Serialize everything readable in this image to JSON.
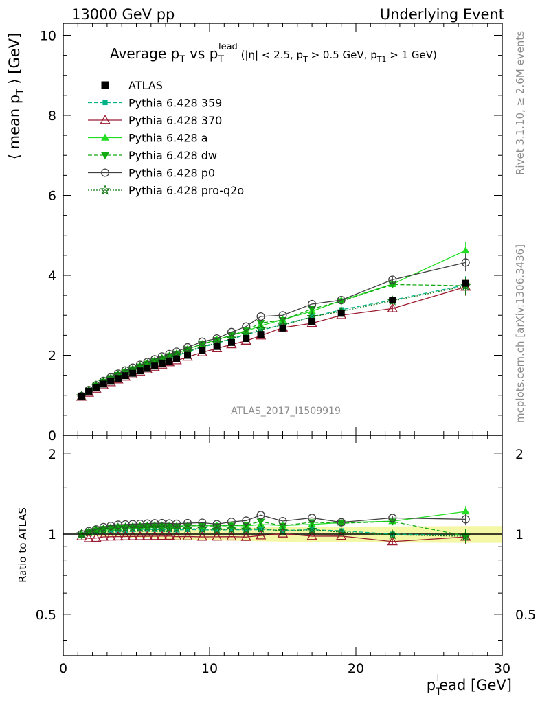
{
  "header": {
    "left": "13000 GeV pp",
    "right": "Underlying Event"
  },
  "side": {
    "rivet": "Rivet 3.1.10, ≥ 2.6M events",
    "mcplots": "mcplots.cern.ch [arXiv:1306.3436]"
  },
  "chart_data": {
    "type": "line",
    "title": {
      "main": "Average p",
      "main_sub": "T",
      "vs": " vs p",
      "vs_sub": "T",
      "vs_sup": "lead",
      "cuts_1": " (|η| < 2.5, p",
      "cuts_1_sub": "T",
      "cuts_2": " > 0.5 GeV, p",
      "cuts_2_sub": "T1",
      "cuts_3": " > 1 GeV)"
    },
    "watermark": "ATLAS_2017_I1509919",
    "xlabel": {
      "main": "p",
      "sub": "T",
      "sup": "l",
      "rest": "ead [GeV]"
    },
    "ylabel": {
      "pre": "⟨ mean p",
      "sub": "T",
      "post": " ⟩ [GeV]"
    },
    "ratio_ylabel": "Ratio to ATLAS",
    "xlim": [
      0,
      30
    ],
    "ylim": [
      0,
      10.3
    ],
    "ratio_ylim": [
      0.35,
      2.35
    ],
    "ratio_log": true,
    "xticks": [
      0,
      10,
      20,
      30
    ],
    "xtick_labels": [
      "0",
      "10",
      "20",
      "30"
    ],
    "yticks": [
      0,
      2,
      4,
      6,
      8,
      10
    ],
    "ytick_labels": [
      "0",
      "2",
      "4",
      "6",
      "8",
      "10"
    ],
    "ratio_yticks": [
      0.5,
      1,
      2
    ],
    "ratio_ytick_labels": [
      "0.5",
      "1",
      "2"
    ],
    "legend_position": "top-left",
    "x": [
      1.25,
      1.75,
      2.25,
      2.75,
      3.25,
      3.75,
      4.25,
      4.75,
      5.25,
      5.75,
      6.25,
      6.75,
      7.25,
      7.75,
      8.5,
      9.5,
      10.5,
      11.5,
      12.5,
      13.5,
      15,
      17,
      19,
      22.5,
      27.5
    ],
    "data": {
      "name": "ATLAS",
      "values": [
        0.98,
        1.1,
        1.2,
        1.28,
        1.35,
        1.42,
        1.49,
        1.55,
        1.61,
        1.67,
        1.73,
        1.79,
        1.85,
        1.91,
        2.0,
        2.12,
        2.22,
        2.32,
        2.42,
        2.52,
        2.68,
        2.85,
        3.05,
        3.38,
        3.8
      ]
    },
    "series": [
      {
        "name": "Pythia 6.428 359",
        "color": "#00b386",
        "dash": "6,3",
        "marker": "square-small",
        "values": [
          0.97,
          1.11,
          1.22,
          1.31,
          1.39,
          1.47,
          1.54,
          1.61,
          1.68,
          1.74,
          1.8,
          1.86,
          1.92,
          1.98,
          2.08,
          2.2,
          2.3,
          2.41,
          2.51,
          2.62,
          2.77,
          2.96,
          3.14,
          3.38,
          3.76
        ]
      },
      {
        "name": "Pythia 6.428 370",
        "color": "#9b1b30",
        "dash": "",
        "marker": "triangle-open",
        "values": [
          0.96,
          1.06,
          1.16,
          1.25,
          1.32,
          1.39,
          1.46,
          1.52,
          1.58,
          1.64,
          1.7,
          1.76,
          1.82,
          1.87,
          1.96,
          2.07,
          2.17,
          2.27,
          2.36,
          2.49,
          2.69,
          2.8,
          3.0,
          3.17,
          3.71
        ]
      },
      {
        "name": "Pythia 6.428 a",
        "color": "#22dd22",
        "dash": "",
        "marker": "triangle-up",
        "values": [
          0.97,
          1.12,
          1.24,
          1.34,
          1.43,
          1.51,
          1.59,
          1.66,
          1.73,
          1.8,
          1.87,
          1.93,
          1.99,
          2.05,
          2.15,
          2.28,
          2.39,
          2.5,
          2.6,
          2.74,
          2.89,
          3.1,
          3.37,
          3.78,
          4.62
        ]
      },
      {
        "name": "Pythia 6.428 dw",
        "color": "#11aa11",
        "dash": "6,3",
        "marker": "triangle-down",
        "values": [
          0.97,
          1.12,
          1.24,
          1.34,
          1.43,
          1.51,
          1.58,
          1.65,
          1.72,
          1.79,
          1.86,
          1.92,
          1.98,
          2.04,
          2.15,
          2.28,
          2.38,
          2.5,
          2.62,
          2.81,
          2.88,
          3.16,
          3.35,
          3.77,
          3.74
        ]
      },
      {
        "name": "Pythia 6.428 p0",
        "color": "#404040",
        "dash": "",
        "marker": "circle-open",
        "values": [
          0.98,
          1.13,
          1.25,
          1.36,
          1.45,
          1.54,
          1.62,
          1.69,
          1.76,
          1.83,
          1.9,
          1.97,
          2.03,
          2.09,
          2.2,
          2.34,
          2.42,
          2.58,
          2.72,
          2.97,
          3.0,
          3.28,
          3.38,
          3.89,
          4.32
        ]
      },
      {
        "name": "Pythia 6.428 pro-q2o",
        "color": "#117711",
        "dash": "2,2",
        "marker": "star",
        "values": [
          0.98,
          1.12,
          1.24,
          1.33,
          1.42,
          1.5,
          1.57,
          1.64,
          1.7,
          1.77,
          1.83,
          1.89,
          1.95,
          2.01,
          2.1,
          2.22,
          2.31,
          2.42,
          2.52,
          2.65,
          2.75,
          2.96,
          3.1,
          3.36,
          3.73
        ]
      }
    ]
  }
}
